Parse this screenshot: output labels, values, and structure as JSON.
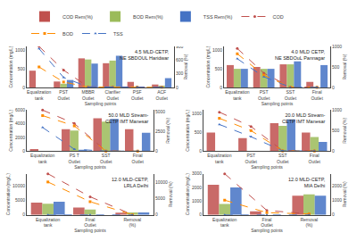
{
  "chart_data": [
    {
      "type": "bar",
      "title": "4.5 MLD-CETP,\nNE SBDOUL Haridwar",
      "categories": [
        "Equalization\ntank",
        "PST Outlet",
        "MBBR Outlet",
        "Clarifier Outlet",
        "PSF Outlet",
        "ACF Outlet"
      ],
      "series": [
        {
          "name": "COD Rem(%)",
          "type": "bar",
          "color": "#C0504D",
          "values": [
            450,
            160,
            780,
            650,
            150,
            80
          ]
        },
        {
          "name": "BOD Rem(%)",
          "type": "bar",
          "color": "#9BBB59",
          "values": [
            0,
            100,
            750,
            720,
            0,
            50
          ]
        },
        {
          "name": "TSS Rem(%)",
          "type": "bar",
          "color": "#4472C4",
          "values": [
            0,
            200,
            640,
            850,
            0,
            250
          ]
        },
        {
          "name": "COD",
          "type": "line",
          "axis": "y2",
          "color": "#C0504D",
          "marker": "circle",
          "line_style": "dashed",
          "values": [
            900,
            380,
            15,
            15,
            10,
            8
          ]
        },
        {
          "name": "BOD",
          "type": "line",
          "axis": "y2",
          "color": "#FF8C00",
          "marker": "square",
          "line_style": "dashed",
          "values": [
            450,
            120,
            10,
            10,
            8,
            5
          ]
        },
        {
          "name": "TSS",
          "type": "line",
          "axis": "y2",
          "color": "#4472C4",
          "marker": "triangle",
          "line_style": "dashed",
          "values": [
            850,
            220,
            12,
            12,
            8,
            4
          ]
        }
      ],
      "xlabel": "Sampling points",
      "ylabel": "Concentration (mg/L)",
      "y2label": "Removal (%)",
      "ylim": [
        0,
        1100
      ],
      "yticks": [
        0,
        500,
        1000
      ],
      "y2lim": [
        0,
        900
      ],
      "y2ticks": [
        0,
        300,
        600,
        900
      ],
      "grid": false,
      "legend": "top"
    },
    {
      "type": "bar",
      "title": "4.0 MLD CETP,\nNE SBDOuL Pannagar",
      "categories": [
        "Equalization tank",
        "PST Outlet",
        "SST Outlet",
        "Final Outlet"
      ],
      "series": [
        {
          "name": "COD Rem(%)",
          "type": "bar",
          "color": "#C0504D",
          "values": [
            600,
            550,
            620,
            150
          ]
        },
        {
          "name": "BOD Rem(%)",
          "type": "bar",
          "color": "#9BBB59",
          "values": [
            500,
            500,
            620,
            0
          ]
        },
        {
          "name": "TSS Rem(%)",
          "type": "bar",
          "color": "#4472C4",
          "values": [
            500,
            500,
            700,
            600
          ]
        },
        {
          "name": "COD",
          "type": "line",
          "axis": "y2",
          "color": "#C0504D",
          "marker": "circle",
          "line_style": "dashed",
          "values": [
            950,
            350,
            10,
            8
          ]
        },
        {
          "name": "BOD",
          "type": "line",
          "axis": "y2",
          "color": "#FF8C00",
          "marker": "square",
          "line_style": "dashed",
          "values": [
            820,
            300,
            8,
            5
          ]
        },
        {
          "name": "TSS",
          "type": "line",
          "axis": "y2",
          "color": "#4472C4",
          "marker": "triangle",
          "line_style": "dashed",
          "values": [
            700,
            260,
            8,
            5
          ]
        }
      ],
      "xlabel": "Sampling points",
      "ylabel": "Concentration (mg/L)",
      "y2label": "Removal (%)",
      "ylim": [
        0,
        1100
      ],
      "yticks": [
        0,
        500,
        1000
      ],
      "y2lim": [
        0,
        1000
      ],
      "y2ticks": [
        0,
        500,
        1000
      ],
      "grid": false,
      "legend": "top"
    },
    {
      "type": "bar",
      "title": "50.0 MLD Stream-\nCETP IMT Manesar",
      "categories": [
        "Equalization tank",
        "PS T Outlet",
        "SST Outlet",
        "Final Outlet"
      ],
      "series": [
        {
          "name": "COD Rem(%)",
          "type": "bar",
          "color": "#C0504D",
          "values": [
            300,
            3200,
            4800,
            3200
          ]
        },
        {
          "name": "BOD Rem(%)",
          "type": "bar",
          "color": "#9BBB59",
          "values": [
            0,
            3000,
            4300,
            0
          ]
        },
        {
          "name": "TSS Rem(%)",
          "type": "bar",
          "color": "#4472C4",
          "values": [
            0,
            200,
            4700,
            2700
          ]
        },
        {
          "name": "COD",
          "type": "line",
          "axis": "y2",
          "color": "#C0504D",
          "marker": "circle",
          "line_style": "dashed",
          "values": [
            5200,
            3500,
            10,
            8
          ]
        },
        {
          "name": "BOD",
          "type": "line",
          "axis": "y2",
          "color": "#FF8C00",
          "marker": "square",
          "line_style": "dashed",
          "values": [
            4500,
            3200,
            8,
            5
          ]
        },
        {
          "name": "TSS",
          "type": "line",
          "axis": "y2",
          "color": "#4472C4",
          "marker": "triangle",
          "line_style": "dashed",
          "values": [
            3000,
            250,
            8,
            5
          ]
        }
      ],
      "xlabel": "Sampling points",
      "ylabel": "Concentration (mg/L)",
      "y2label": "Removal (%)",
      "ylim": [
        0,
        6000
      ],
      "yticks": [
        0,
        2000,
        4000,
        6000
      ],
      "y2lim": [
        0,
        5200
      ],
      "y2ticks": [
        0,
        2500,
        5000
      ],
      "grid": false,
      "legend": "top"
    },
    {
      "type": "bar",
      "title": "20.0 MLD Stream-\nCETP IMT Manesar",
      "categories": [
        "Equalization tank",
        "PST Outlet",
        "SST Outlet",
        "Final Outlet"
      ],
      "series": [
        {
          "name": "COD Rem(%)",
          "type": "bar",
          "color": "#C0504D",
          "values": [
            500,
            350,
            750,
            500
          ]
        },
        {
          "name": "BOD Rem(%)",
          "type": "bar",
          "color": "#9BBB59",
          "values": [
            0,
            0,
            680,
            380
          ]
        },
        {
          "name": "TSS Rem(%)",
          "type": "bar",
          "color": "#4472C4",
          "values": [
            0,
            0,
            850,
            250
          ]
        },
        {
          "name": "COD",
          "type": "line",
          "axis": "y2",
          "color": "#C0504D",
          "marker": "circle",
          "line_style": "dashed",
          "values": [
            950,
            600,
            10,
            8
          ]
        },
        {
          "name": "BOD",
          "type": "line",
          "axis": "y2",
          "color": "#FF8C00",
          "marker": "square",
          "line_style": "dashed",
          "values": [
            800,
            500,
            8,
            5
          ]
        },
        {
          "name": "TSS",
          "type": "line",
          "axis": "y2",
          "color": "#4472C4",
          "marker": "triangle",
          "line_style": "dashed",
          "values": [
            650,
            350,
            8,
            5
          ]
        }
      ],
      "xlabel": "Sampling points",
      "ylabel": "Concentration (mg/L)",
      "y2label": "Removal (%)",
      "ylim": [
        0,
        1100
      ],
      "yticks": [
        0,
        500,
        1000
      ],
      "y2lim": [
        0,
        1000
      ],
      "y2ticks": [
        0,
        500,
        1000
      ],
      "grid": false,
      "legend": "top"
    },
    {
      "type": "bar",
      "title": "12.0 MLD-CETP,\nLRLA Delhi",
      "categories": [
        "Equalization tank",
        "Final Outlet",
        "Removal (%)"
      ],
      "series": [
        {
          "name": "COD Rem(%)",
          "type": "bar",
          "color": "#C0504D",
          "values": [
            4200,
            2500,
            750
          ]
        },
        {
          "name": "BOD Rem(%)",
          "type": "bar",
          "color": "#9BBB59",
          "values": [
            3800,
            1800,
            800
          ]
        },
        {
          "name": "TSS Rem(%)",
          "type": "bar",
          "color": "#4472C4",
          "values": [
            4500,
            0,
            850
          ]
        },
        {
          "name": "COD",
          "type": "line",
          "axis": "y2",
          "color": "#C0504D",
          "marker": "circle",
          "line_style": "dashed",
          "values": [
            12500,
            5500,
            60
          ]
        },
        {
          "name": "BOD",
          "type": "line",
          "axis": "y2",
          "color": "#FF8C00",
          "marker": "square",
          "line_style": "dashed",
          "values": [
            10000,
            4000,
            55
          ]
        },
        {
          "name": "TSS",
          "type": "line",
          "axis": "y2",
          "color": "#4472C4",
          "marker": "triangle",
          "line_style": "dashed",
          "values": [
            0,
            0,
            0
          ]
        }
      ],
      "xlabel": "Sampling points",
      "ylabel": "Concentration (mg/L)",
      "y2label": "Removal (%)",
      "ylim": [
        0,
        14000
      ],
      "yticks": [
        0,
        5000,
        10000
      ],
      "y2lim": [
        0,
        12500
      ],
      "y2ticks": [
        0,
        5000,
        10000
      ],
      "grid": false,
      "legend": "top"
    },
    {
      "type": "bar",
      "title": "12.0 MLD-CETP,\nMIA Delhi",
      "categories": [
        "Equalization tank",
        "Final Outlet",
        "Removal (%)"
      ],
      "series": [
        {
          "name": "COD Rem(%)",
          "type": "bar",
          "color": "#C0504D",
          "values": [
            2200,
            250,
            1400
          ]
        },
        {
          "name": "BOD Rem(%)",
          "type": "bar",
          "color": "#9BBB59",
          "values": [
            800,
            0,
            1500
          ]
        },
        {
          "name": "TSS Rem(%)",
          "type": "bar",
          "color": "#4472C4",
          "values": [
            2000,
            0,
            1400
          ]
        },
        {
          "name": "COD",
          "type": "line",
          "axis": "y2",
          "color": "#C0504D",
          "marker": "circle",
          "line_style": "dashed",
          "values": [
            2800,
            300,
            60
          ]
        },
        {
          "name": "BOD",
          "type": "line",
          "axis": "y2",
          "color": "#FF8C00",
          "marker": "square",
          "line_style": "dashed",
          "values": [
            1000,
            150,
            55
          ]
        },
        {
          "name": "TSS",
          "type": "line",
          "axis": "y2",
          "color": "#4472C4",
          "marker": "triangle",
          "line_style": "dashed",
          "values": [
            0,
            0,
            0
          ]
        }
      ],
      "xlabel": "Sampling points",
      "ylabel": "Concentration (mg/L)",
      "y2label": "Removal (%)",
      "ylim": [
        0,
        3000
      ],
      "yticks": [
        0,
        1000,
        2000,
        3000
      ],
      "y2lim": [
        0,
        2800
      ],
      "y2ticks": [
        0,
        1000,
        2000
      ],
      "grid": false,
      "legend": "top"
    }
  ]
}
